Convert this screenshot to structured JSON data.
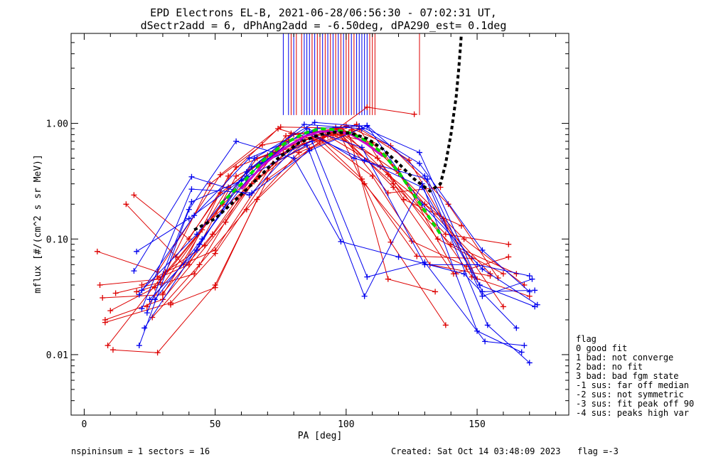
{
  "chart_data": {
    "type": "line",
    "title": "EPD Electrons EL-B, 2021-06-28/06:56:30 - 07:02:31 UT,",
    "subtitle": "dSectr2add = 6, dPhAng2add = -6.50deg, dPA290_est=   0.1deg",
    "xlabel": "PA [deg]",
    "ylabel": "mflux [#/(cm^2 s sr MeV)]",
    "xlim": [
      -5,
      185
    ],
    "ylim": [
      0.003,
      6
    ],
    "yscale": "log",
    "xticks": [
      0,
      50,
      100,
      150
    ],
    "xtick_labels": [
      "0",
      "50",
      "100",
      "150"
    ],
    "yticks": [
      0.01,
      0.1,
      1.0
    ],
    "ytick_labels": [
      "0.01",
      "0.10",
      "1.00"
    ],
    "colors": {
      "red": "#dd0000",
      "blue": "#0000ee",
      "green": "#00dd00",
      "black": "#000000"
    },
    "series": [
      {
        "color": "red",
        "x": [
          5,
          28,
          52,
          75,
          98,
          115,
          148,
          170
        ],
        "y": [
          0.078,
          0.052,
          0.36,
          0.93,
          0.91,
          0.53,
          0.047,
          0.032
        ]
      },
      {
        "color": "red",
        "x": [
          6,
          29,
          53,
          78,
          97,
          120,
          145,
          168
        ],
        "y": [
          0.04,
          0.045,
          0.2,
          0.7,
          0.85,
          0.37,
          0.1,
          0.04
        ]
      },
      {
        "color": "red",
        "x": [
          7,
          30,
          55,
          80,
          95,
          118,
          140,
          165
        ],
        "y": [
          0.031,
          0.033,
          0.28,
          0.8,
          0.88,
          0.3,
          0.09,
          0.05
        ]
      },
      {
        "color": "red",
        "x": [
          8,
          33,
          50,
          76,
          100,
          117,
          139,
          158
        ],
        "y": [
          0.019,
          0.028,
          0.075,
          0.55,
          0.95,
          0.64,
          0.2,
          0.046
        ]
      },
      {
        "color": "red",
        "x": [
          9,
          31,
          50,
          72,
          93,
          113,
          138,
          162
        ],
        "y": [
          0.012,
          0.052,
          0.08,
          0.45,
          0.78,
          0.42,
          0.11,
          0.09
        ]
      },
      {
        "color": "red",
        "x": [
          11,
          28,
          50,
          70,
          91,
          110,
          132,
          155
        ],
        "y": [
          0.011,
          0.0104,
          0.04,
          0.33,
          0.72,
          0.35,
          0.06,
          0.048
        ]
      },
      {
        "color": "red",
        "x": [
          19,
          40,
          58,
          76,
          96,
          116,
          136
        ],
        "y": [
          0.24,
          0.1,
          0.42,
          0.6,
          0.92,
          0.25,
          0.28
        ]
      },
      {
        "color": "red",
        "x": [
          16,
          38,
          55,
          74,
          90,
          108,
          126
        ],
        "y": [
          0.2,
          0.06,
          0.35,
          0.9,
          0.7,
          1.38,
          1.2
        ]
      },
      {
        "color": "red",
        "x": [
          12,
          29,
          48,
          68,
          88,
          106,
          127,
          148
        ],
        "y": [
          0.034,
          0.042,
          0.3,
          0.65,
          0.8,
          0.33,
          0.071,
          0.068
        ]
      },
      {
        "color": "red",
        "x": [
          10,
          27,
          45,
          66,
          87,
          107,
          125,
          146
        ],
        "y": [
          0.024,
          0.038,
          0.12,
          0.5,
          0.75,
          0.3,
          0.096,
          0.058
        ]
      },
      {
        "color": "red",
        "x": [
          22,
          40,
          58,
          80,
          97,
          117,
          138
        ],
        "y": [
          0.04,
          0.06,
          0.35,
          0.62,
          0.87,
          0.094,
          0.018
        ]
      },
      {
        "color": "red",
        "x": [
          26,
          44,
          62,
          82,
          102,
          120,
          142
        ],
        "y": [
          0.021,
          0.06,
          0.18,
          0.56,
          0.88,
          0.4,
          0.05
        ]
      },
      {
        "color": "red",
        "x": [
          28,
          46,
          64,
          84,
          104,
          122,
          144
        ],
        "y": [
          0.047,
          0.088,
          0.3,
          0.67,
          0.98,
          0.22,
          0.13
        ]
      },
      {
        "color": "red",
        "x": [
          33,
          50,
          66,
          86,
          105,
          124,
          150
        ],
        "y": [
          0.027,
          0.038,
          0.22,
          0.6,
          0.9,
          0.48,
          0.045
        ]
      },
      {
        "color": "red",
        "x": [
          30,
          49,
          70,
          92,
          110,
          130,
          155
        ],
        "y": [
          0.034,
          0.11,
          0.53,
          0.85,
          0.68,
          0.2,
          0.05
        ]
      },
      {
        "color": "red",
        "x": [
          35,
          52,
          72,
          95,
          112,
          135,
          160
        ],
        "y": [
          0.07,
          0.25,
          0.55,
          0.8,
          0.5,
          0.1,
          0.05
        ]
      },
      {
        "color": "red",
        "x": [
          8,
          30,
          54,
          77,
          96,
          118,
          141,
          162
        ],
        "y": [
          0.02,
          0.03,
          0.14,
          0.78,
          0.9,
          0.28,
          0.05,
          0.07
        ]
      },
      {
        "color": "red",
        "x": [
          20,
          42,
          60,
          79,
          99,
          116,
          137,
          160
        ],
        "y": [
          0.035,
          0.05,
          0.24,
          0.82,
          0.85,
          0.36,
          0.15,
          0.026
        ]
      },
      {
        "color": "red",
        "x": [
          24,
          47,
          66,
          83,
          101,
          116,
          134
        ],
        "y": [
          0.026,
          0.14,
          0.33,
          0.72,
          0.82,
          0.045,
          0.035
        ]
      },
      {
        "color": "blue",
        "x": [
          19,
          41,
          63,
          86,
          108,
          129,
          152,
          173
        ],
        "y": [
          0.053,
          0.345,
          0.24,
          0.58,
          0.95,
          0.2,
          0.055,
          0.027
        ]
      },
      {
        "color": "blue",
        "x": [
          20,
          40,
          62,
          85,
          106,
          130,
          150,
          170
        ],
        "y": [
          0.078,
          0.15,
          0.35,
          0.9,
          0.62,
          0.06,
          0.06,
          0.048
        ]
      },
      {
        "color": "blue",
        "x": [
          21,
          42,
          63,
          85,
          107,
          129,
          151,
          172
        ],
        "y": [
          0.033,
          0.16,
          0.5,
          0.82,
          0.48,
          0.28,
          0.04,
          0.026
        ]
      },
      {
        "color": "blue",
        "x": [
          22,
          43,
          62,
          84,
          106,
          128,
          152,
          170
        ],
        "y": [
          0.036,
          0.11,
          0.38,
          0.98,
          0.9,
          0.45,
          0.08,
          0.035
        ]
      },
      {
        "color": "blue",
        "x": [
          22,
          41,
          64,
          86,
          103,
          131,
          152,
          171
        ],
        "y": [
          0.025,
          0.27,
          0.25,
          0.85,
          0.5,
          0.33,
          0.032,
          0.045
        ]
      },
      {
        "color": "blue",
        "x": [
          23,
          44,
          64,
          87,
          108,
          130,
          153,
          168
        ],
        "y": [
          0.017,
          0.09,
          0.42,
          0.7,
          0.047,
          0.063,
          0.013,
          0.012
        ]
      },
      {
        "color": "blue",
        "x": [
          24,
          41,
          60,
          85,
          107,
          129,
          150,
          167
        ],
        "y": [
          0.023,
          0.21,
          0.32,
          0.65,
          0.032,
          0.3,
          0.016,
          0.0105
        ]
      },
      {
        "color": "blue",
        "x": [
          21,
          40,
          58,
          80,
          98,
          120,
          145,
          165
        ],
        "y": [
          0.012,
          0.18,
          0.7,
          0.5,
          0.095,
          0.07,
          0.05,
          0.017
        ]
      },
      {
        "color": "blue",
        "x": [
          25,
          43,
          65,
          88,
          105,
          128,
          152,
          172
        ],
        "y": [
          0.03,
          0.08,
          0.5,
          1.02,
          0.95,
          0.56,
          0.035,
          0.036
        ]
      },
      {
        "color": "blue",
        "x": [
          27,
          45,
          67,
          89,
          108,
          130,
          154,
          170
        ],
        "y": [
          0.03,
          0.1,
          0.45,
          0.9,
          0.96,
          0.35,
          0.018,
          0.0085
        ]
      }
    ],
    "vlines": [
      {
        "color": "blue",
        "x": [
          76,
          78,
          80,
          84,
          85,
          86,
          88,
          91,
          93,
          95,
          97,
          99,
          102,
          104,
          105,
          106,
          107,
          108
        ]
      },
      {
        "color": "red",
        "x": [
          79,
          81,
          83,
          87,
          89,
          90,
          92,
          94,
          96,
          98,
          100,
          101,
          103,
          109,
          110,
          111,
          128
        ]
      }
    ],
    "fit_green": {
      "x": [
        52,
        60,
        68,
        76,
        84,
        90,
        96,
        102,
        108,
        114,
        120,
        126,
        132,
        136
      ],
      "y": [
        0.2,
        0.3,
        0.47,
        0.66,
        0.82,
        0.9,
        0.88,
        0.82,
        0.7,
        0.55,
        0.38,
        0.24,
        0.15,
        0.11
      ]
    },
    "fit_magenta": {
      "x": [
        60,
        68,
        76,
        84,
        90,
        96,
        102,
        108,
        114
      ],
      "y": [
        0.27,
        0.43,
        0.6,
        0.77,
        0.85,
        0.86,
        0.8,
        0.66,
        0.52
      ]
    },
    "fit_black": {
      "x": [
        42,
        50,
        58,
        66,
        74,
        82,
        90,
        96,
        102,
        108,
        114,
        120,
        126,
        132,
        136,
        138,
        140,
        142,
        143,
        144
      ],
      "y": [
        0.12,
        0.15,
        0.22,
        0.33,
        0.5,
        0.68,
        0.8,
        0.84,
        0.82,
        0.74,
        0.6,
        0.45,
        0.33,
        0.26,
        0.3,
        0.45,
        0.8,
        1.7,
        3.0,
        5.9
      ]
    }
  },
  "footer": {
    "left": "nspininsum =  1  sectors = 16",
    "created": "Created: Sat Oct 14 03:48:09 2023",
    "flag": "flag =-3"
  },
  "legend": {
    "title": "flag",
    "items": [
      " 0 good fit",
      " 1 bad: not converge",
      " 2 bad: no fit",
      " 3 bad: bad fgm state",
      "-1 sus: far off median",
      "-2 sus: not symmetric",
      "-3 sus: fit peak off 90",
      "-4 sus: peaks high var"
    ]
  }
}
